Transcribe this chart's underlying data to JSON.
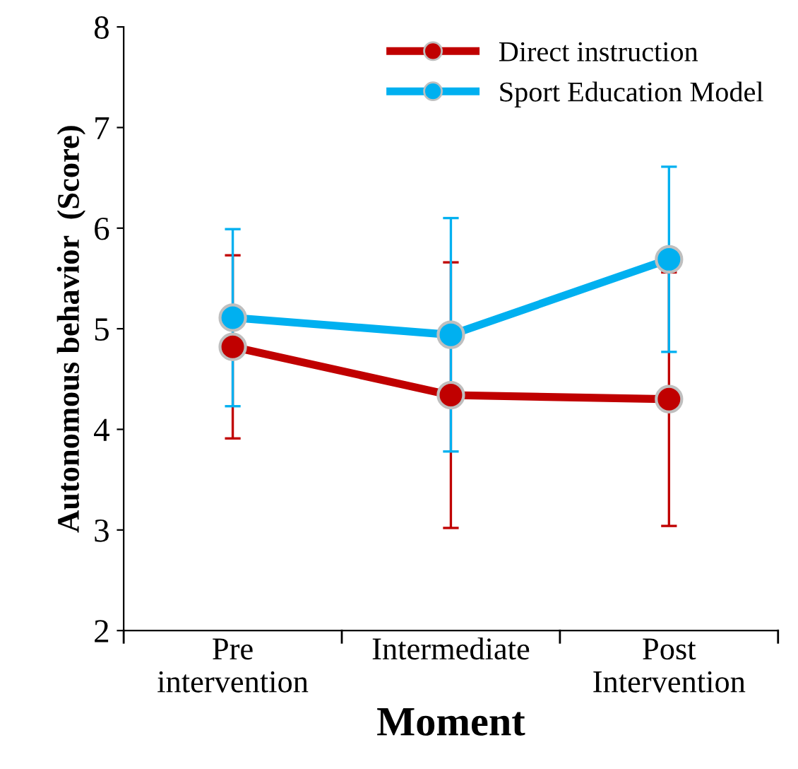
{
  "chart_data": {
    "type": "line",
    "xlabel": "Moment",
    "ylabel": "Autonomous behavior  (Score)",
    "categories": [
      "Pre\nintervention",
      "Intermediate",
      "Post\nIntervention"
    ],
    "series": [
      {
        "name": "Direct instruction",
        "color": "#c00000",
        "values": [
          4.82,
          4.34,
          4.3
        ],
        "errors": [
          0.91,
          1.32,
          1.26
        ]
      },
      {
        "name": "Sport Education Model",
        "color": "#00b0f0",
        "values": [
          5.11,
          4.94,
          5.69
        ],
        "errors": [
          0.88,
          1.16,
          0.92
        ]
      }
    ],
    "ylim": [
      2,
      8
    ],
    "yticks": [
      2,
      3,
      4,
      5,
      6,
      7,
      8
    ],
    "grid": false,
    "legend": "top right",
    "marker": "circle",
    "line_style": "solid"
  }
}
